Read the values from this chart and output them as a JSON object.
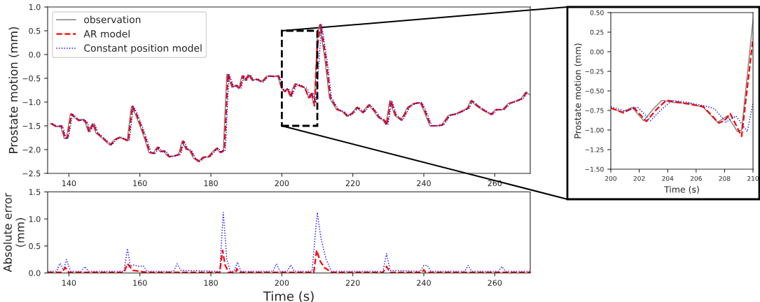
{
  "chart_data": [
    {
      "type": "line",
      "ylabel": "Prostate motion (mm)",
      "xlim": [
        134,
        270
      ],
      "xticks": [
        140,
        160,
        180,
        200,
        220,
        240,
        260
      ],
      "ylim": [
        -2.5,
        1.0
      ],
      "yticks": [
        {
          "value": -2.5,
          "label": "−2.5"
        },
        {
          "value": -2.0,
          "label": "−2.0"
        },
        {
          "value": -1.5,
          "label": "−1.5"
        },
        {
          "value": -1.0,
          "label": "−1.0"
        },
        {
          "value": -0.5,
          "label": "−0.5"
        },
        {
          "value": 0.0,
          "label": "0.0"
        },
        {
          "value": 0.5,
          "label": "0.5"
        },
        {
          "value": 1.0,
          "label": "1.0"
        }
      ],
      "legend": "top left",
      "series": [
        {
          "name": "observation",
          "color": "#808080",
          "line_style": "solid",
          "x": [
            134.7,
            136.3,
            137.6,
            138.7,
            139.3,
            140.4,
            141.6,
            142.6,
            143.7,
            144.6,
            145.4,
            146.6,
            147.6,
            149.2,
            150.2,
            151.5,
            152.8,
            154.1,
            155.4,
            156.4,
            157.6,
            158.7,
            160.0,
            161.4,
            162.5,
            163.7,
            164.8,
            165.6,
            166.6,
            168.0,
            169.6,
            170.9,
            171.9,
            172.9,
            173.9,
            175.1,
            176.4,
            177.7,
            179.2,
            180.5,
            181.5,
            182.5,
            183.5,
            184.5,
            185.2,
            185.9,
            186.9,
            187.9,
            188.7,
            189.5,
            190.5,
            191.5,
            192.8,
            194.1,
            195.8,
            197.5,
            198.8,
            199.8,
            200,
            200.8,
            201.5,
            202.3,
            203,
            203.6,
            204.5,
            205.5,
            206.5,
            207.5,
            208.2,
            208.9,
            209.2,
            210,
            210.6,
            212.1,
            213.4,
            215.4,
            217.0,
            218.3,
            219.7,
            221.0,
            222.6,
            224.3,
            225.6,
            227.2,
            228.5,
            229.3,
            230.4,
            231.8,
            233.5,
            235.4,
            237.1,
            238.9,
            240.0,
            241.7,
            243.6,
            245.0,
            246.9,
            248.9,
            250.9,
            252.2,
            253.2,
            254.8,
            256.8,
            258.8,
            260.1,
            262.1,
            263.8,
            265.4,
            267.4,
            268.7,
            270.0
          ],
          "values": [
            -1.45,
            -1.52,
            -1.5,
            -1.77,
            -1.75,
            -1.25,
            -1.33,
            -1.39,
            -1.36,
            -1.43,
            -1.62,
            -1.45,
            -1.65,
            -1.75,
            -1.82,
            -1.9,
            -1.79,
            -1.74,
            -1.78,
            -1.82,
            -1.09,
            -1.25,
            -1.5,
            -1.79,
            -2.06,
            -2.08,
            -1.95,
            -2.04,
            -2.03,
            -2.15,
            -2.13,
            -2.1,
            -1.82,
            -1.99,
            -2.01,
            -2.18,
            -2.25,
            -2.16,
            -2.15,
            -2.04,
            -1.97,
            -2.06,
            -2.01,
            -0.41,
            -0.54,
            -0.69,
            -0.65,
            -0.72,
            -0.45,
            -0.54,
            -0.42,
            -0.54,
            -0.52,
            -0.58,
            -0.45,
            -0.46,
            -0.45,
            -0.69,
            -0.72,
            -0.77,
            -0.71,
            -0.88,
            -0.73,
            -0.62,
            -0.65,
            -0.66,
            -0.71,
            -0.9,
            -0.82,
            -1.02,
            -1.0,
            0.41,
            0.63,
            -0.08,
            -0.91,
            -1.16,
            -1.2,
            -1.3,
            -1.23,
            -1.11,
            -1.22,
            -1.06,
            -1.16,
            -1.33,
            -1.38,
            -1.48,
            -0.97,
            -1.28,
            -1.38,
            -1.11,
            -1.03,
            -1.01,
            -1.18,
            -1.5,
            -1.5,
            -1.48,
            -1.28,
            -1.25,
            -1.18,
            -1.13,
            -0.97,
            -1.08,
            -1.18,
            -1.26,
            -1.16,
            -1.16,
            -1.03,
            -0.99,
            -0.93,
            -0.79,
            -0.85
          ]
        },
        {
          "name": "AR model",
          "color": "#ff0000",
          "line_style": "dashed",
          "x": [
            135.0,
            136.6,
            137.9,
            139.0,
            139.6,
            140.7,
            141.9,
            142.9,
            144.0,
            144.9,
            145.7,
            146.9,
            147.9,
            149.5,
            150.5,
            151.8,
            153.1,
            154.4,
            155.7,
            156.7,
            157.9,
            159.0,
            160.3,
            161.7,
            162.8,
            164.0,
            165.1,
            165.9,
            166.9,
            168.3,
            169.9,
            171.2,
            172.2,
            173.2,
            174.2,
            175.4,
            176.7,
            178.0,
            179.5,
            180.8,
            181.8,
            182.8,
            183.8,
            184.8,
            185.5,
            186.2,
            187.2,
            188.2,
            189.0,
            189.8,
            190.8,
            191.8,
            193.1,
            194.4,
            196.1,
            197.8,
            199.1,
            200,
            200.9,
            201.6,
            202.5,
            203.2,
            203.9,
            205.2,
            206.5,
            207.6,
            208.0,
            208.4,
            209.2,
            210,
            210.9,
            212.4,
            213.7,
            215.7,
            217.3,
            218.6,
            220.0,
            221.3,
            222.9,
            224.6,
            225.9,
            227.5,
            228.8,
            229.6,
            230.7,
            232.1,
            233.8,
            235.7,
            237.4,
            239.2,
            240.3,
            242.0,
            243.9,
            245.3,
            247.2,
            249.2,
            251.2,
            252.5,
            253.5,
            255.1,
            257.1,
            259.1,
            260.4,
            262.4,
            264.1,
            265.7,
            267.7,
            269.0
          ],
          "values": [
            -1.45,
            -1.52,
            -1.5,
            -1.77,
            -1.75,
            -1.25,
            -1.33,
            -1.39,
            -1.36,
            -1.43,
            -1.62,
            -1.45,
            -1.65,
            -1.75,
            -1.82,
            -1.9,
            -1.79,
            -1.74,
            -1.78,
            -1.82,
            -1.09,
            -1.25,
            -1.5,
            -1.79,
            -2.06,
            -2.08,
            -1.95,
            -2.04,
            -2.03,
            -2.15,
            -2.13,
            -2.1,
            -1.82,
            -1.99,
            -2.01,
            -2.18,
            -2.25,
            -2.16,
            -2.15,
            -2.04,
            -1.97,
            -2.06,
            -2.01,
            -0.41,
            -0.54,
            -0.69,
            -0.65,
            -0.72,
            -0.45,
            -0.54,
            -0.42,
            -0.54,
            -0.52,
            -0.58,
            -0.45,
            -0.46,
            -0.45,
            -0.72,
            -0.78,
            -0.71,
            -0.89,
            -0.74,
            -0.62,
            -0.66,
            -0.7,
            -0.91,
            -0.88,
            -0.79,
            -1.08,
            0.17,
            0.63,
            -0.08,
            -0.91,
            -1.16,
            -1.2,
            -1.3,
            -1.23,
            -1.11,
            -1.22,
            -1.06,
            -1.16,
            -1.33,
            -1.38,
            -1.48,
            -0.97,
            -1.28,
            -1.38,
            -1.11,
            -1.03,
            -1.01,
            -1.18,
            -1.5,
            -1.5,
            -1.48,
            -1.28,
            -1.25,
            -1.18,
            -1.13,
            -0.97,
            -1.08,
            -1.18,
            -1.26,
            -1.16,
            -1.16,
            -1.03,
            -0.99,
            -0.93,
            -0.79
          ]
        },
        {
          "name": "Constant position model",
          "color": "#0000ff",
          "line_style": "dotted",
          "x": [
            135.3,
            136.9,
            138.2,
            139.3,
            139.9,
            141.0,
            142.2,
            143.2,
            144.3,
            145.2,
            146.0,
            147.2,
            148.2,
            149.8,
            150.8,
            152.1,
            153.4,
            154.7,
            156.0,
            157.0,
            158.2,
            159.3,
            160.6,
            162.0,
            163.1,
            164.3,
            165.4,
            166.2,
            167.2,
            168.6,
            170.2,
            171.5,
            172.5,
            173.5,
            174.5,
            175.7,
            177.0,
            178.3,
            179.8,
            181.1,
            182.1,
            183.1,
            184.1,
            185.1,
            185.8,
            186.5,
            187.5,
            188.5,
            189.3,
            190.1,
            191.1,
            192.1,
            193.4,
            194.7,
            196.4,
            198.1,
            199.4,
            200,
            201,
            201.9,
            202.8,
            203.5,
            204.3,
            205.5,
            206.8,
            207.3,
            208.1,
            208.8,
            209.6,
            210,
            211.2,
            212.7,
            214.0,
            216.0,
            217.6,
            218.9,
            220.3,
            221.6,
            223.2,
            224.9,
            226.2,
            227.8,
            229.1,
            229.9,
            231.0,
            232.4,
            234.1,
            236.0,
            237.7,
            239.5,
            240.6,
            242.3,
            244.2,
            245.6,
            247.5,
            249.5,
            251.5,
            252.8,
            253.8,
            255.4,
            257.4,
            259.4,
            260.7,
            262.7,
            264.4,
            266.0,
            268.0,
            269.3
          ],
          "values": [
            -1.45,
            -1.52,
            -1.5,
            -1.77,
            -1.75,
            -1.25,
            -1.33,
            -1.39,
            -1.36,
            -1.43,
            -1.62,
            -1.45,
            -1.65,
            -1.75,
            -1.82,
            -1.9,
            -1.79,
            -1.74,
            -1.78,
            -1.82,
            -1.09,
            -1.25,
            -1.5,
            -1.79,
            -2.06,
            -2.08,
            -1.95,
            -2.04,
            -2.03,
            -2.15,
            -2.13,
            -2.1,
            -1.82,
            -1.99,
            -2.01,
            -2.18,
            -2.25,
            -2.16,
            -2.15,
            -2.04,
            -1.97,
            -2.06,
            -2.01,
            -0.41,
            -0.54,
            -0.69,
            -0.65,
            -0.72,
            -0.45,
            -0.54,
            -0.42,
            -0.54,
            -0.52,
            -0.58,
            -0.45,
            -0.46,
            -0.45,
            -0.7,
            -0.76,
            -0.71,
            -0.88,
            -0.75,
            -0.62,
            -0.65,
            -0.7,
            -0.73,
            -0.9,
            -0.82,
            -1.02,
            -0.65,
            0.63,
            -0.08,
            -0.91,
            -1.16,
            -1.2,
            -1.3,
            -1.23,
            -1.11,
            -1.22,
            -1.06,
            -1.16,
            -1.33,
            -1.38,
            -1.48,
            -0.97,
            -1.28,
            -1.38,
            -1.11,
            -1.03,
            -1.01,
            -1.18,
            -1.5,
            -1.5,
            -1.48,
            -1.28,
            -1.25,
            -1.18,
            -1.13,
            -0.97,
            -1.08,
            -1.18,
            -1.26,
            -1.16,
            -1.16,
            -1.03,
            -0.99,
            -0.93,
            -0.79
          ]
        }
      ]
    },
    {
      "type": "line",
      "xlabel": "Time (s)",
      "ylabel": "Absolute error\n(mm)",
      "xlim": [
        134,
        270
      ],
      "xticks": [
        140,
        160,
        180,
        200,
        220,
        240,
        260
      ],
      "ylim": [
        0,
        1.5
      ],
      "yticks": [
        {
          "value": 0.0,
          "label": "0.0"
        },
        {
          "value": 0.5,
          "label": "0.5"
        },
        {
          "value": 1.0,
          "label": "1.0"
        },
        {
          "value": 1.5,
          "label": "1.5"
        }
      ],
      "series": [
        {
          "color": "#0000ff",
          "line_style": "dotted",
          "x": [
            134,
            136.5,
            137.5,
            138.5,
            139.3,
            140.5,
            143.5,
            144.5,
            145.5,
            155.5,
            156.5,
            157.3,
            158,
            160,
            161,
            162,
            169.5,
            170.5,
            171.5,
            182.5,
            183.5,
            184.5,
            185.5,
            186.5,
            187.5,
            188.5,
            197.5,
            198.5,
            199.5,
            201.5,
            202.5,
            203.5,
            208.5,
            210,
            211,
            212.5,
            214,
            228.5,
            229.5,
            230.5,
            239,
            240,
            241,
            242,
            251.5,
            252.5,
            253.5,
            261,
            262,
            263,
            270
          ],
          "values": [
            0.03,
            0.03,
            0.18,
            0.05,
            0.25,
            0.03,
            0.03,
            0.12,
            0.03,
            0.03,
            0.45,
            0.12,
            0.15,
            0.12,
            0.13,
            0.03,
            0.03,
            0.17,
            0.05,
            0.03,
            1.12,
            0.25,
            0.03,
            0.03,
            0.2,
            0.03,
            0.03,
            0.17,
            0.03,
            0.03,
            0.15,
            0.03,
            0.03,
            1.12,
            0.65,
            0.25,
            0.03,
            0.03,
            0.36,
            0.05,
            0.03,
            0.14,
            0.14,
            0.03,
            0.03,
            0.14,
            0.03,
            0.03,
            0.12,
            0.03,
            0.03
          ]
        },
        {
          "color": "#ff0000",
          "line_style": "dashed",
          "x": [
            134,
            138,
            139,
            140,
            155.5,
            156.5,
            158,
            162,
            182.5,
            183.3,
            184,
            185,
            187,
            187.3,
            188,
            209,
            209.8,
            210.8,
            212,
            214,
            228.5,
            229.5,
            230.5,
            239.5,
            240,
            240.5,
            270
          ],
          "values": [
            0.01,
            0.01,
            0.1,
            0.01,
            0.01,
            0.17,
            0.05,
            0.01,
            0.01,
            0.42,
            0.15,
            0.01,
            0.01,
            0.08,
            0.01,
            0.01,
            0.42,
            0.22,
            0.1,
            0.01,
            0.01,
            0.12,
            0.01,
            0.01,
            0.06,
            0.01,
            0.01
          ]
        }
      ]
    },
    {
      "type": "line",
      "xlabel": "Time (s)",
      "ylabel": "Prostate motion (mm)",
      "xlim": [
        200,
        210
      ],
      "xticks": [
        200,
        202,
        204,
        206,
        208,
        210
      ],
      "ylim": [
        -1.5,
        0.5
      ],
      "yticks": [
        {
          "value": -1.5,
          "label": "−1.50"
        },
        {
          "value": -1.25,
          "label": "−1.25"
        },
        {
          "value": -1.0,
          "label": "−1.00"
        },
        {
          "value": -0.75,
          "label": "−0.75"
        },
        {
          "value": -0.5,
          "label": "−0.50"
        },
        {
          "value": -0.25,
          "label": "−0.25"
        },
        {
          "value": 0.0,
          "label": "0.00"
        },
        {
          "value": 0.25,
          "label": "0.25"
        },
        {
          "value": 0.5,
          "label": "0.50"
        }
      ],
      "series": [
        {
          "color": "#808080",
          "line_style": "solid",
          "x": [
            200,
            200.8,
            201.5,
            202.3,
            203,
            203.6,
            204.5,
            205.5,
            206.5,
            207.5,
            208.2,
            208.9,
            209.2,
            210
          ],
          "values": [
            -0.72,
            -0.77,
            -0.71,
            -0.88,
            -0.73,
            -0.62,
            -0.65,
            -0.66,
            -0.71,
            -0.9,
            -0.82,
            -1.02,
            -1.0,
            0.41
          ]
        },
        {
          "color": "#ff0000",
          "line_style": "dashed",
          "x": [
            200,
            200.9,
            201.6,
            202.5,
            203.2,
            203.9,
            205.2,
            206.5,
            207.6,
            208.0,
            208.4,
            209.2,
            210
          ],
          "values": [
            -0.72,
            -0.78,
            -0.71,
            -0.89,
            -0.74,
            -0.62,
            -0.66,
            -0.7,
            -0.91,
            -0.88,
            -0.79,
            -1.08,
            0.17
          ]
        },
        {
          "color": "#0000ff",
          "line_style": "dotted",
          "x": [
            200,
            201,
            201.9,
            202.8,
            203.5,
            204.3,
            205.5,
            206.8,
            207.3,
            208.1,
            208.8,
            209.6,
            210
          ],
          "values": [
            -0.7,
            -0.76,
            -0.71,
            -0.88,
            -0.75,
            -0.62,
            -0.65,
            -0.7,
            -0.73,
            -0.9,
            -0.82,
            -1.02,
            -0.65
          ]
        }
      ]
    }
  ]
}
